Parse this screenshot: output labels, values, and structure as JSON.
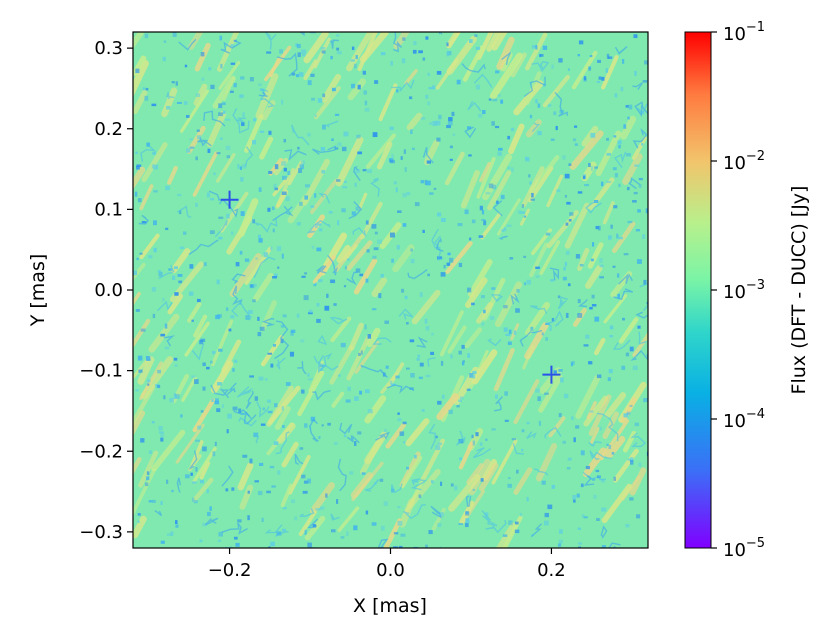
{
  "chart_data": {
    "type": "heatmap",
    "title": "",
    "xlabel": "X [mas]",
    "ylabel": "Y [mas]",
    "xlim": [
      -0.32,
      0.32
    ],
    "ylim": [
      -0.32,
      0.32
    ],
    "x_ticks": [
      {
        "value": -0.2,
        "label": "−0.2"
      },
      {
        "value": 0.0,
        "label": "0.0"
      },
      {
        "value": 0.2,
        "label": "0.2"
      }
    ],
    "y_ticks": [
      {
        "value": 0.3,
        "label": "0.3"
      },
      {
        "value": 0.2,
        "label": "0.2"
      },
      {
        "value": 0.1,
        "label": "0.1"
      },
      {
        "value": 0.0,
        "label": "0.0"
      },
      {
        "value": -0.1,
        "label": "−0.1"
      },
      {
        "value": -0.2,
        "label": "−0.2"
      },
      {
        "value": -0.3,
        "label": "−0.3"
      }
    ],
    "colorbar": {
      "label": "Flux (DFT - DUCC) [Jy]",
      "scale": "log",
      "range": [
        1e-05,
        0.1
      ],
      "colormap": "rainbow",
      "ticks": [
        {
          "value": 0.1,
          "base": "10",
          "exp": "−1"
        },
        {
          "value": 0.01,
          "base": "10",
          "exp": "−2"
        },
        {
          "value": 0.001,
          "base": "10",
          "exp": "−3"
        },
        {
          "value": 0.0001,
          "base": "10",
          "exp": "−4"
        },
        {
          "value": 1e-05,
          "base": "10",
          "exp": "−5"
        }
      ]
    },
    "typical_value": 0.001,
    "value_range": [
      0.0001,
      0.01
    ],
    "grid": false,
    "notable_minima": [
      {
        "x": 0.2,
        "y": -0.105,
        "value": 0.0001
      },
      {
        "x": -0.2,
        "y": 0.112,
        "value": 0.0001
      }
    ]
  }
}
